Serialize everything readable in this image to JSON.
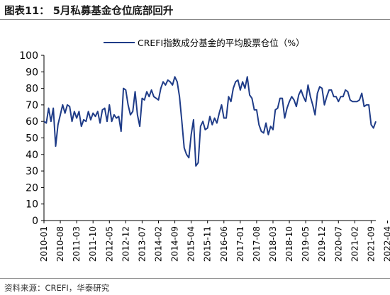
{
  "figure": {
    "title": "图表11： 5月私募基金仓位底部回升",
    "source": "资料来源：CREFI，华泰研究"
  },
  "chart_data": {
    "type": "line",
    "title": "",
    "xlabel": "",
    "ylabel": "",
    "ylim": [
      0,
      100
    ],
    "y_ticks": [
      0,
      10,
      20,
      30,
      40,
      50,
      60,
      70,
      80,
      90,
      100
    ],
    "x_tick_labels": [
      "2010-01",
      "2010-08",
      "2011-03",
      "2011-10",
      "2012-05",
      "2012-12",
      "2013-07",
      "2014-02",
      "2014-09",
      "2015-04",
      "2015-11",
      "2016-06",
      "2017-01",
      "2017-08",
      "2018-03",
      "2018-10",
      "2019-05",
      "2019-12",
      "2020-07",
      "2021-02",
      "2021-09",
      "2022-04"
    ],
    "grid": false,
    "legend_position": "top-right",
    "series_color": "#1f3c88",
    "series": [
      {
        "name": "CREFI指数成分基金的平均股票仓位（%）",
        "values": [
          60,
          59,
          68,
          60,
          68,
          45,
          58,
          64,
          70,
          65,
          70,
          69,
          60,
          66,
          62,
          66,
          57,
          61,
          60,
          66,
          61,
          65,
          63,
          66,
          59,
          67,
          68,
          60,
          70,
          60,
          64,
          62,
          63,
          54,
          80,
          79,
          70,
          64,
          66,
          78,
          64,
          57,
          74,
          73,
          78,
          75,
          79,
          75,
          74,
          73,
          80,
          84,
          82,
          85,
          84,
          82,
          87,
          84,
          75,
          60,
          44,
          40,
          38,
          52,
          61,
          33,
          35,
          57,
          60,
          55,
          56,
          63,
          58,
          62,
          59,
          65,
          70,
          62,
          62,
          75,
          72,
          80,
          84,
          85,
          79,
          84,
          80,
          87,
          76,
          74,
          67,
          67,
          58,
          54,
          53,
          59,
          52,
          57,
          55,
          67,
          68,
          74,
          74,
          62,
          68,
          72,
          75,
          73,
          69,
          76,
          79,
          75,
          72,
          82,
          75,
          70,
          64,
          77,
          81,
          80,
          70,
          75,
          79,
          79,
          75,
          75,
          72,
          75,
          75,
          79,
          78,
          73,
          72,
          72,
          72,
          73,
          77,
          69,
          70,
          70,
          58,
          56,
          60
        ]
      }
    ]
  }
}
